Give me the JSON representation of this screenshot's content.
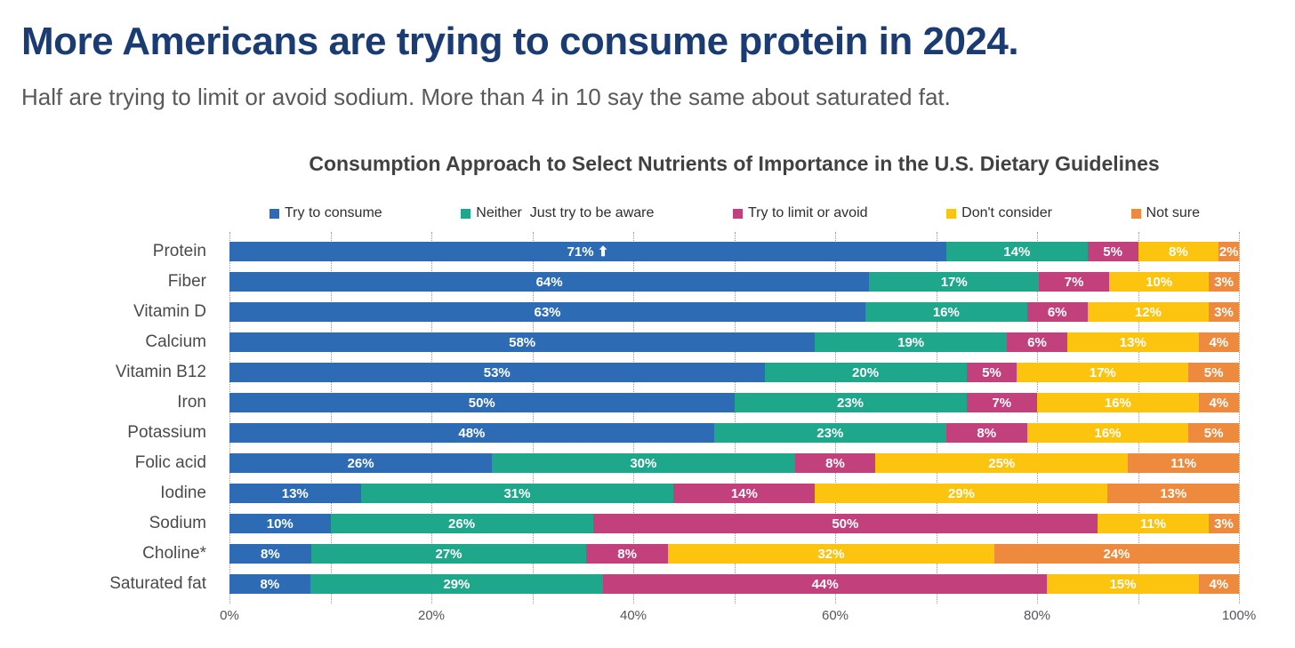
{
  "page": {
    "title": "More Americans are trying to consume protein in 2024.",
    "subtitle": "Half are trying to limit or avoid sodium. More than 4 in 10 say the same about saturated fat."
  },
  "colors": {
    "title_navy": "#1B3C73",
    "subtitle_gray": "#58595B",
    "chart_title_gray": "#414141",
    "category_label_gray": "#4A4A4C",
    "axis_label_gray": "#54555E",
    "gridline_gray": "#94959E",
    "segment_label_white": "#FFFFFF"
  },
  "chart_data": {
    "type": "bar",
    "stacked": true,
    "orientation": "horizontal",
    "title": "Consumption Approach to Select Nutrients of Importance in the U.S. Dietary Guidelines",
    "categories": [
      "Protein",
      "Fiber",
      "Vitamin D",
      "Calcium",
      "Vitamin B12",
      "Iron",
      "Potassium",
      "Folic acid",
      "Iodine",
      "Sodium",
      "Choline*",
      "Saturated fat"
    ],
    "series": [
      {
        "name": "Try to consume",
        "color": "#2D6CB4",
        "values": [
          71,
          64,
          63,
          58,
          53,
          50,
          48,
          26,
          13,
          10,
          8,
          8
        ]
      },
      {
        "name": "Neither  Just try to be aware",
        "color": "#1FA78C",
        "values": [
          14,
          17,
          16,
          19,
          20,
          23,
          23,
          30,
          31,
          26,
          27,
          29
        ]
      },
      {
        "name": "Try to limit or avoid",
        "color": "#C2417C",
        "values": [
          5,
          7,
          6,
          6,
          5,
          7,
          8,
          8,
          14,
          50,
          8,
          44
        ]
      },
      {
        "name": "Don't consider",
        "color": "#FDC40F",
        "values": [
          8,
          10,
          12,
          13,
          17,
          16,
          16,
          25,
          29,
          11,
          32,
          15
        ]
      },
      {
        "name": "Not sure",
        "color": "#EE8A3D",
        "values": [
          2,
          3,
          3,
          4,
          5,
          4,
          5,
          11,
          13,
          3,
          24,
          4
        ]
      }
    ],
    "value_label_format": "{value}%",
    "annotations": [
      {
        "category": "Protein",
        "series": "Try to consume",
        "suffix": " ⬆"
      }
    ],
    "x_ticks": [
      "0%",
      "20%",
      "40%",
      "60%",
      "80%",
      "100%"
    ],
    "xlim": [
      0,
      100
    ],
    "grid": "dotted vertical lines every 10%",
    "legend_position": "top"
  }
}
